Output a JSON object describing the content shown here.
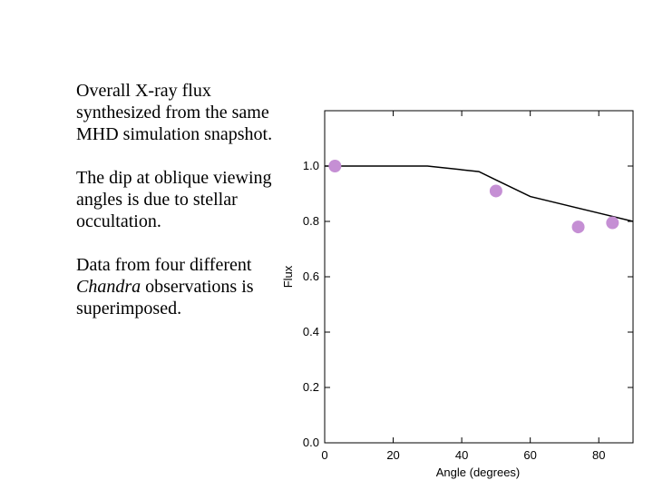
{
  "caption": {
    "p1": "Overall X-ray flux synthesized from the same MHD simulation snapshot.",
    "p2": "The dip at oblique viewing angles is due to stellar occultation.",
    "p3_before": "Data from four different ",
    "p3_em": "Chandra",
    "p3_after": " observations is superimposed."
  },
  "chart_data": {
    "type": "line",
    "xlabel": "Angle (degrees)",
    "ylabel": "Flux",
    "xlim": [
      0,
      90
    ],
    "ylim": [
      0,
      1.2
    ],
    "xticks": [
      0,
      20,
      40,
      60,
      80
    ],
    "yticks": [
      0.0,
      0.2,
      0.4,
      0.6,
      0.8,
      1.0
    ],
    "tick_labels_x": [
      "0",
      "20",
      "40",
      "60",
      "80"
    ],
    "tick_labels_y": [
      "0.0",
      "0.2",
      "0.4",
      "0.6",
      "0.8",
      "1.0"
    ],
    "grid": false,
    "series": [
      {
        "kind": "line",
        "x": [
          0,
          30,
          45,
          50,
          60,
          70,
          80,
          90
        ],
        "y": [
          1.0,
          1.0,
          0.98,
          0.95,
          0.89,
          0.86,
          0.83,
          0.8
        ]
      },
      {
        "kind": "scatter",
        "x": [
          3,
          50,
          74,
          84
        ],
        "y": [
          1.0,
          0.91,
          0.78,
          0.795
        ]
      }
    ],
    "colors": {
      "line": "#000000",
      "points": "#c58fd4"
    }
  }
}
